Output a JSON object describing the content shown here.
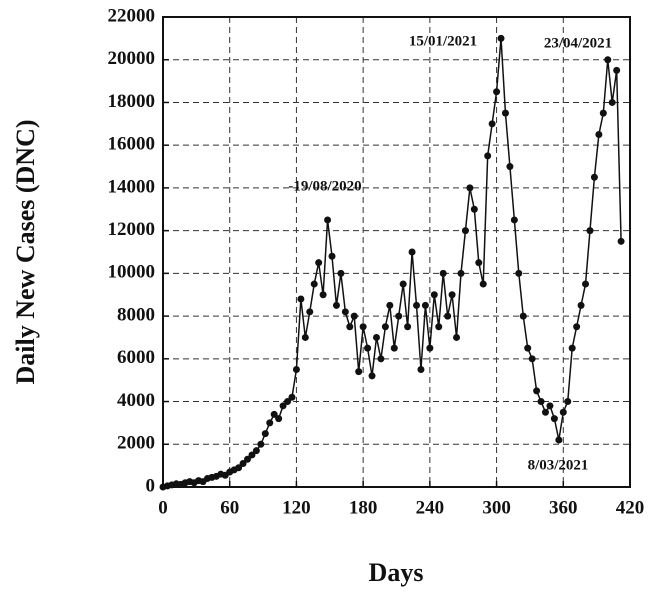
{
  "chart_data": {
    "type": "line",
    "x_label": "Days",
    "y_label": "Daily New Cases (DNC)",
    "annotations": [
      "-19/08/2020",
      "15/01/2021",
      "23/04/2021",
      "8/03/2021"
    ],
    "x": [
      0,
      4,
      8,
      12,
      16,
      20,
      24,
      28,
      32,
      36,
      40,
      44,
      48,
      52,
      56,
      60,
      64,
      68,
      72,
      76,
      80,
      84,
      88,
      92,
      96,
      100,
      104,
      108,
      112,
      116,
      120,
      124,
      128,
      132,
      136,
      140,
      144,
      148,
      152,
      156,
      160,
      164,
      168,
      172,
      176,
      180,
      184,
      188,
      192,
      196,
      200,
      204,
      208,
      212,
      216,
      220,
      224,
      228,
      232,
      236,
      240,
      244,
      248,
      252,
      256,
      260,
      264,
      268,
      272,
      276,
      280,
      284,
      288,
      292,
      296,
      300,
      304,
      308,
      312,
      316,
      320,
      324,
      328,
      332,
      336,
      340,
      344,
      348,
      352,
      356,
      360,
      364,
      368,
      372,
      376,
      380,
      384,
      388,
      392,
      396,
      400,
      404,
      408,
      412
    ],
    "series": [
      {
        "color": "#111111",
        "values": [
          0,
          50,
          100,
          150,
          120,
          200,
          250,
          200,
          300,
          250,
          400,
          450,
          500,
          600,
          550,
          700,
          800,
          900,
          1100,
          1300,
          1500,
          1700,
          2000,
          2500,
          3000,
          3400,
          3200,
          3800,
          4000,
          4200,
          5500,
          8800,
          7000,
          8200,
          9500,
          10500,
          9000,
          12500,
          10800,
          8500,
          10000,
          8200,
          7500,
          8000,
          5400,
          7500,
          6500,
          5200,
          7000,
          6000,
          7500,
          8500,
          6500,
          8000,
          9500,
          7500,
          11000,
          8500,
          5500,
          8500,
          6500,
          9000,
          7500,
          10000,
          8000,
          9000,
          7000,
          10000,
          12000,
          14000,
          13000,
          10500,
          9500,
          15500,
          17000,
          18500,
          21000,
          17500,
          15000,
          12500,
          10000,
          8000,
          6500,
          6000,
          4500,
          4000,
          3500,
          3800,
          3200,
          2200,
          3500,
          4000,
          6500,
          7500,
          8500,
          9500,
          12000,
          14500,
          16500,
          17500,
          20000,
          18000,
          19500,
          11500
        ]
      }
    ],
    "xlim": [
      0,
      420
    ],
    "xticks": [
      0,
      60,
      120,
      180,
      240,
      300,
      360,
      420
    ],
    "ylim": [
      0,
      22000
    ],
    "yticks": [
      0,
      2000,
      4000,
      6000,
      8000,
      10000,
      12000,
      14000,
      16000,
      18000,
      20000,
      22000
    ],
    "grid": true
  }
}
